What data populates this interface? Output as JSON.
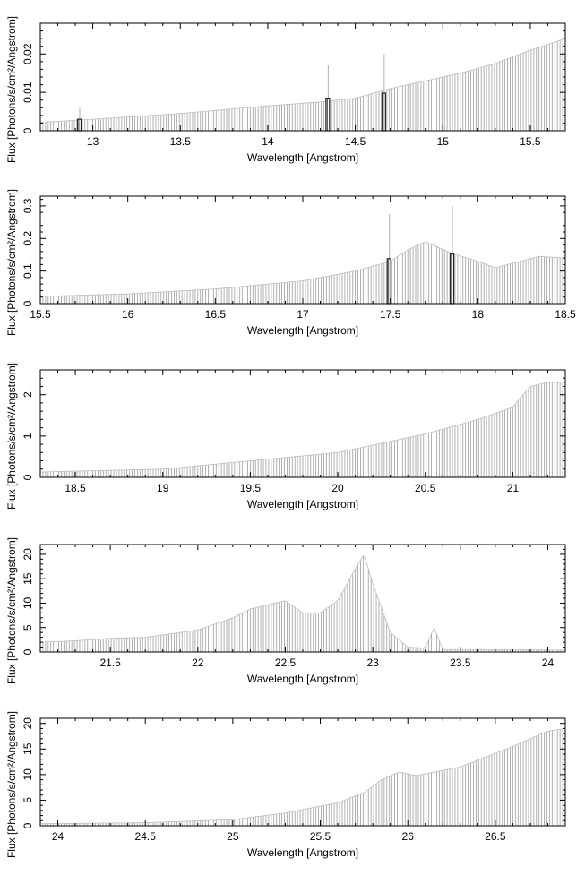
{
  "chart_data": [
    {
      "type": "bar",
      "xlabel": "Wavelength [Angstrom]",
      "ylabel": "Flux [Photons/s/cm²/Angstrom]",
      "xlim": [
        12.7,
        15.7
      ],
      "ylim": [
        0,
        0.028
      ],
      "xticks": [
        13,
        13.5,
        14,
        14.5,
        15,
        15.5
      ],
      "xtick_labels": [
        "13",
        "13.5",
        "14",
        "14.5",
        "15",
        "15.5"
      ],
      "yticks": [
        0,
        0.01,
        0.02
      ],
      "ytick_labels": [
        "0",
        "0.01",
        "0.02"
      ],
      "envelope_x": [
        12.7,
        13.0,
        13.5,
        14.0,
        14.3,
        14.5,
        14.7,
        14.9,
        15.1,
        15.3,
        15.5,
        15.7
      ],
      "envelope_y": [
        0.0022,
        0.003,
        0.0045,
        0.0065,
        0.0075,
        0.0085,
        0.011,
        0.013,
        0.015,
        0.0175,
        0.021,
        0.024
      ],
      "series_color": "#a8a8a8",
      "highlights": [
        {
          "x": 12.92,
          "value": 0.003,
          "line_top": 0.006
        },
        {
          "x": 14.34,
          "value": 0.0085,
          "line_top": 0.017
        },
        {
          "x": 14.66,
          "value": 0.0098,
          "line_top": 0.02
        }
      ]
    },
    {
      "type": "bar",
      "xlabel": "Wavelength [Angstrom]",
      "ylabel": "Flux [Photons/s/cm²/Angstrom]",
      "xlim": [
        15.5,
        18.5
      ],
      "ylim": [
        0,
        0.33
      ],
      "xticks": [
        15.5,
        16,
        16.5,
        17,
        17.5,
        18,
        18.5
      ],
      "xtick_labels": [
        "15.5",
        "16",
        "16.5",
        "17",
        "17.5",
        "18",
        "18.5"
      ],
      "yticks": [
        0,
        0.1,
        0.2,
        0.3
      ],
      "ytick_labels": [
        "0",
        "0.1",
        "0.2",
        "0.3"
      ],
      "envelope_x": [
        15.5,
        16.0,
        16.5,
        17.0,
        17.3,
        17.5,
        17.6,
        17.7,
        17.85,
        18.0,
        18.1,
        18.35,
        18.5
      ],
      "envelope_y": [
        0.022,
        0.03,
        0.045,
        0.07,
        0.1,
        0.13,
        0.165,
        0.19,
        0.155,
        0.13,
        0.11,
        0.145,
        0.14
      ],
      "series_color": "#a8a8a8",
      "highlights": [
        {
          "x": 17.49,
          "value": 0.138,
          "line_top": 0.275
        },
        {
          "x": 17.85,
          "value": 0.152,
          "line_top": 0.3
        }
      ]
    },
    {
      "type": "bar",
      "xlabel": "Wavelength [Angstrom]",
      "ylabel": "Flux [Photons/s/cm²/Angstrom]",
      "xlim": [
        18.3,
        21.3
      ],
      "ylim": [
        0,
        2.6
      ],
      "xticks": [
        18.5,
        19,
        19.5,
        20,
        20.5,
        21
      ],
      "xtick_labels": [
        "18.5",
        "19",
        "19.5",
        "20",
        "20.5",
        "21"
      ],
      "yticks": [
        0,
        1,
        2
      ],
      "ytick_labels": [
        "0",
        "1",
        "2"
      ],
      "envelope_x": [
        18.3,
        18.5,
        19.0,
        19.5,
        20.0,
        20.5,
        20.8,
        21.0,
        21.1,
        21.2,
        21.3
      ],
      "envelope_y": [
        0.13,
        0.15,
        0.2,
        0.4,
        0.6,
        1.05,
        1.4,
        1.7,
        2.2,
        2.3,
        2.3
      ],
      "series_color": "#a8a8a8",
      "highlights": []
    },
    {
      "type": "bar",
      "xlabel": "Wavelength [Angstrom]",
      "ylabel": "Flux [Photons/s/cm²/Angstrom]",
      "xlim": [
        21.1,
        24.1
      ],
      "ylim": [
        0,
        22
      ],
      "xticks": [
        21.5,
        22,
        22.5,
        23,
        23.5,
        24
      ],
      "xtick_labels": [
        "21.5",
        "22",
        "22.5",
        "23",
        "23.5",
        "24"
      ],
      "yticks": [
        0,
        5,
        10,
        15,
        20
      ],
      "ytick_labels": [
        "0",
        "5",
        "10",
        "15",
        "20"
      ],
      "envelope_x": [
        21.1,
        21.3,
        21.5,
        21.7,
        22.0,
        22.2,
        22.3,
        22.5,
        22.6,
        22.7,
        22.8,
        22.9,
        22.95,
        23.0,
        23.1,
        23.2,
        23.3,
        23.35,
        23.4,
        23.6,
        24.1
      ],
      "envelope_y": [
        2.0,
        2.3,
        2.8,
        3.0,
        4.5,
        7.0,
        8.8,
        10.5,
        8.0,
        8.0,
        10.5,
        17.0,
        20.0,
        14.0,
        4.0,
        1.0,
        0.8,
        5.0,
        0.5,
        0.5,
        0.4
      ],
      "series_color": "#a8a8a8",
      "highlights": []
    },
    {
      "type": "bar",
      "xlabel": "Wavelength [Angstrom]",
      "ylabel": "Flux [Photons/s/cm²/Angstrom]",
      "xlim": [
        23.9,
        26.9
      ],
      "ylim": [
        0,
        21
      ],
      "xticks": [
        24,
        24.5,
        25,
        25.5,
        26,
        26.5
      ],
      "xtick_labels": [
        "24",
        "24.5",
        "25",
        "25.5",
        "26",
        "26.5"
      ],
      "yticks": [
        0,
        5,
        10,
        15,
        20
      ],
      "ytick_labels": [
        "0",
        "5",
        "10",
        "15",
        "20"
      ],
      "envelope_x": [
        23.9,
        24.5,
        25.0,
        25.3,
        25.6,
        25.75,
        25.85,
        25.95,
        26.05,
        26.3,
        26.6,
        26.7,
        26.8,
        26.9
      ],
      "envelope_y": [
        0.4,
        0.6,
        1.2,
        2.5,
        4.5,
        6.5,
        9.0,
        10.5,
        9.8,
        11.5,
        15.5,
        17.0,
        18.5,
        19.0
      ],
      "series_color": "#a8a8a8",
      "highlights": []
    }
  ]
}
